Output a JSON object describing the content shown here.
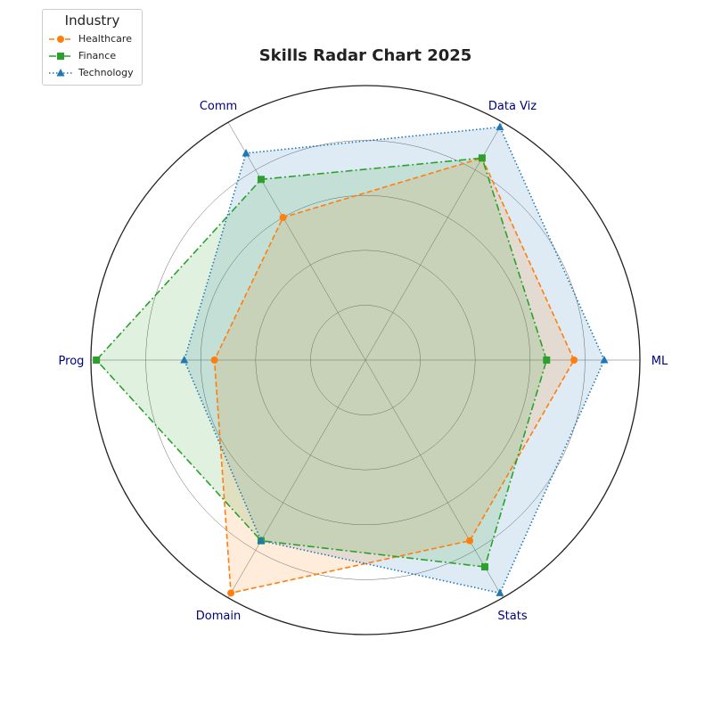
{
  "chart_data": {
    "type": "radar",
    "title": "Skills Radar Chart 2025",
    "axes": [
      "ML",
      "Data Viz",
      "Comm",
      "Prog",
      "Domain",
      "Stats"
    ],
    "rlim": [
      0,
      100
    ],
    "grid": true,
    "legend": {
      "title": "Industry",
      "placement": "upper-left"
    },
    "series": [
      {
        "name": "Healthcare",
        "values": [
          76,
          85,
          60,
          55,
          98,
          76
        ],
        "color": "#ff7f0e",
        "linestyle": "dashed",
        "marker": "circle"
      },
      {
        "name": "Finance",
        "values": [
          66,
          85,
          76,
          98,
          76,
          87
        ],
        "color": "#2ca02c",
        "linestyle": "dashdot",
        "marker": "square"
      },
      {
        "name": "Technology",
        "values": [
          87,
          98,
          87,
          66,
          76,
          98
        ],
        "color": "#1f77b4",
        "linestyle": "dotted",
        "marker": "triangle"
      }
    ],
    "fill_order": [
      "Technology",
      "Healthcare",
      "Finance"
    ]
  }
}
